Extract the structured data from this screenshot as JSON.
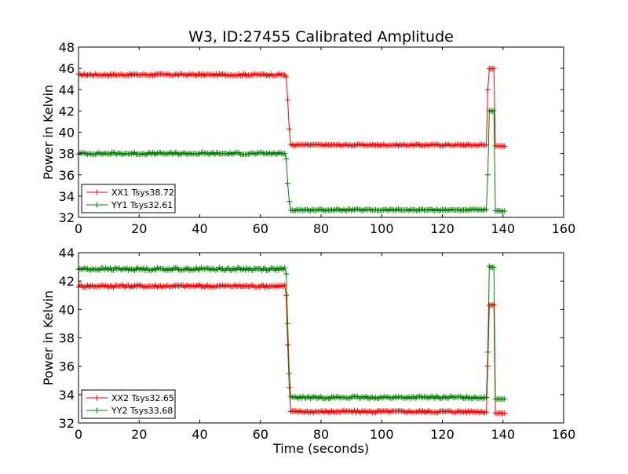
{
  "chart_data": {
    "type": "line",
    "title": "W3, ID:27455 Calibrated Amplitude",
    "xlabel": "Time (seconds)",
    "subplots": [
      {
        "ylabel": "Power in Kelvin",
        "xlim": [
          0,
          160
        ],
        "ylim": [
          32,
          48
        ],
        "xticks": [
          "0",
          "20",
          "40",
          "60",
          "80",
          "100",
          "120",
          "140",
          "160"
        ],
        "yticks": [
          "32",
          "34",
          "36",
          "38",
          "40",
          "42",
          "44",
          "46",
          "48"
        ],
        "legend_position": "lower-left",
        "series": [
          {
            "name": "XX1 Tsys38.72",
            "color": "#ff0000",
            "segments": [
              {
                "t0": 0,
                "t1": 68,
                "v": 45.4,
                "noise": 0.1
              },
              {
                "t0": 68.5,
                "v": 45.2
              },
              {
                "t0": 69,
                "v": 43.0
              },
              {
                "t0": 69.5,
                "v": 40.3
              },
              {
                "t0": 70,
                "t1": 134.5,
                "v": 38.8,
                "noise": 0.08
              },
              {
                "t0": 135,
                "v": 44.0
              },
              {
                "t0": 135.5,
                "t1": 137,
                "v": 46.0,
                "noise": 0.05
              },
              {
                "t0": 137.5,
                "t1": 140.5,
                "v": 38.7,
                "noise": 0.03
              }
            ]
          },
          {
            "name": "YY1 Tsys32.61",
            "color": "#008000",
            "segments": [
              {
                "t0": 0,
                "t1": 68,
                "v": 38.0,
                "noise": 0.1
              },
              {
                "t0": 68.5,
                "v": 37.5
              },
              {
                "t0": 69,
                "v": 35.2
              },
              {
                "t0": 69.5,
                "v": 33.5
              },
              {
                "t0": 70,
                "t1": 134.5,
                "v": 32.7,
                "noise": 0.08
              },
              {
                "t0": 135,
                "v": 36.0
              },
              {
                "t0": 135.5,
                "t1": 137,
                "v": 42.0,
                "noise": 0.05
              },
              {
                "t0": 137.5,
                "t1": 140.5,
                "v": 32.6,
                "noise": 0.03
              }
            ]
          }
        ]
      },
      {
        "ylabel": "Power in Kelvin",
        "xlim": [
          0,
          160
        ],
        "ylim": [
          32,
          44
        ],
        "xticks": [
          "0",
          "20",
          "40",
          "60",
          "80",
          "100",
          "120",
          "140",
          "160"
        ],
        "yticks": [
          "32",
          "34",
          "36",
          "38",
          "40",
          "42",
          "44"
        ],
        "legend_position": "lower-left",
        "series": [
          {
            "name": "XX2 Tsys32.65",
            "color": "#ff0000",
            "segments": [
              {
                "t0": 0,
                "t1": 68,
                "v": 41.65,
                "noise": 0.1
              },
              {
                "t0": 68.5,
                "v": 41.0
              },
              {
                "t0": 69,
                "v": 37.5
              },
              {
                "t0": 69.5,
                "v": 34.5
              },
              {
                "t0": 70,
                "t1": 134.5,
                "v": 32.8,
                "noise": 0.08
              },
              {
                "t0": 135,
                "v": 36.0
              },
              {
                "t0": 135.5,
                "t1": 137,
                "v": 40.3,
                "noise": 0.05
              },
              {
                "t0": 137.5,
                "t1": 140.5,
                "v": 32.7,
                "noise": 0.03
              }
            ]
          },
          {
            "name": "YY2 Tsys33.68",
            "color": "#008000",
            "segments": [
              {
                "t0": 0,
                "t1": 68,
                "v": 42.85,
                "noise": 0.1
              },
              {
                "t0": 68.5,
                "v": 42.5
              },
              {
                "t0": 69,
                "v": 39.0
              },
              {
                "t0": 69.5,
                "v": 35.5
              },
              {
                "t0": 70,
                "t1": 134.5,
                "v": 33.8,
                "noise": 0.08
              },
              {
                "t0": 135,
                "v": 37.0
              },
              {
                "t0": 135.5,
                "t1": 137,
                "v": 43.0,
                "noise": 0.05
              },
              {
                "t0": 137.5,
                "t1": 140.5,
                "v": 33.7,
                "noise": 0.03
              }
            ]
          }
        ]
      }
    ]
  }
}
